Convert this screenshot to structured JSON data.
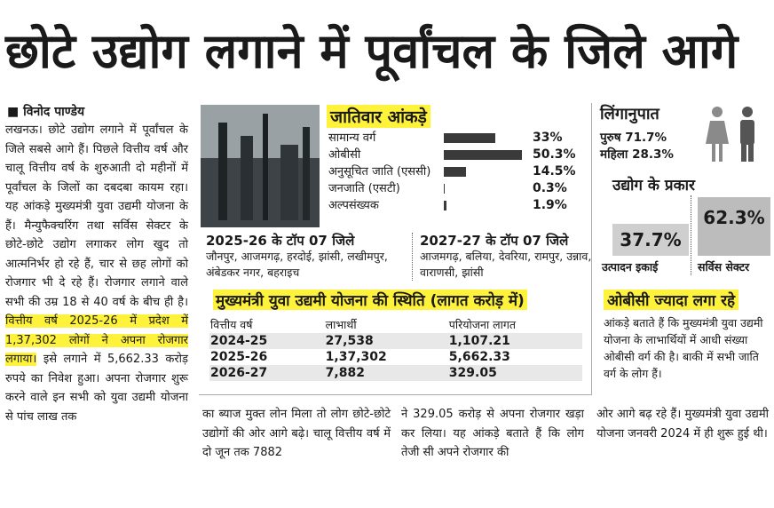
{
  "headline": "छोटे उद्योग लगाने में पूर्वांचल के जिले आगे",
  "byline": "विनोद पाण्डेय",
  "article": {
    "lead": "लखनऊ। छोटे उद्योग लगाने में पूर्वांचल के जिले सबसे आगे हैं। पिछले वित्तीय वर्ष और चालू वित्तीय वर्ष के शुरुआती दो महीनों में पूर्वांचल के जिलों का दबदबा कायम रहा। यह आंकड़े मुख्यमंत्री युवा उद्यमी योजना के हैं। मैन्युफैक्चरिंग तथा सर्विस सेक्टर के छोटे-छोटे उद्योग लगाकर लोग खुद तो आत्मनिर्भर हो रहे हैं, चार से छह लोगों को रोजगार भी दे रहे हैं। रोजगार लगाने वाले सभी की उम्र 18 से 40 वर्ष के बीच ही है।",
    "highlight": "वित्तीय वर्ष 2025-26 में प्रदेश में 1,37,302 लोगों ने अपना रोजगार लगाया।",
    "continuation": "इसे लगाने में 5,662.33 करोड़ रुपये का निवेश हुआ। अपना रोजगार शुरू करने वाले इन सभी को युवा उद्यमी योजना से पांच लाख तक",
    "columns": [
      "का ब्याज मुक्त लोन मिला तो लोग छोटे-छोटे उद्योगों की ओर आगे बढ़े। चालू वित्तीय वर्ष में दो जून तक 7882",
      "ने 329.05 करोड़ से अपना रोजगार खड़ा कर लिया। यह आंकड़े बताते हैं कि लोग तेजी सी अपने रोजगार की",
      "ओर आगे बढ़ रहे हैं। मुख्यमंत्री युवा उद्यमी योजना जनवरी 2024 में ही शुरू हुई थी।"
    ]
  },
  "caste_data": {
    "title": "जातिवार आंकड़े",
    "categories": [
      "सामान्य वर्ग",
      "ओबीसी",
      "अनुसूचित जाति (एससी)",
      "जनजाति (एसटी)",
      "अल्पसंख्यक"
    ],
    "values": [
      33,
      50.3,
      14.5,
      0.3,
      1.9
    ],
    "value_labels": [
      "33%",
      "50.3%",
      "14.5%",
      "0.3%",
      "1.9%"
    ],
    "color": "#3a3a3a"
  },
  "top_districts": [
    {
      "title": "2025-26 के टॉप 07 जिले",
      "text": "जौनपुर, आजमगढ़, हरदोई, झांसी, लखीमपुर, अंबेडकर नगर, बहराइच"
    },
    {
      "title": "2027-27 के टॉप 07 जिले",
      "text": "आजमगढ़, बलिया, देवरिया, रामपुर, उन्नाव, वाराणसी, झांसी"
    }
  ],
  "scheme_table": {
    "title": "मुख्यमंत्री युवा उद्यमी योजना की स्थिति",
    "unit": "(लागत करोड़ में)",
    "header": [
      "वित्तीय वर्ष",
      "लाभार्थी",
      "परियोजना लागत"
    ],
    "rows": [
      [
        "2024-25",
        "27,538",
        "1,107.21"
      ],
      [
        "2025-26",
        "1,37,302",
        "5,662.33"
      ],
      [
        "2026-27",
        "7,882",
        "329.05"
      ]
    ]
  },
  "sex_ratio": {
    "title": "लिंगानुपात",
    "rows": [
      "पुरुष 71.7%",
      "महिला 28.3%"
    ]
  },
  "industry_type": {
    "title": "उद्योग के प्रकार",
    "items": [
      {
        "value_label": "37.7%",
        "label": "उत्पादन इकाई"
      },
      {
        "value_label": "62.3%",
        "label": "सर्विस सेक्टर"
      }
    ]
  },
  "obc": {
    "title": "ओबीसी ज्यादा लगा रहे",
    "text": "आंकड़े बताते हैं कि मुख्यमंत्री युवा उद्यमी योजना के लाभार्थियों में आधी संख्या ओबीसी वर्ग की है। बाकी में सभी जाति वर्ग के लोग हैं।"
  }
}
